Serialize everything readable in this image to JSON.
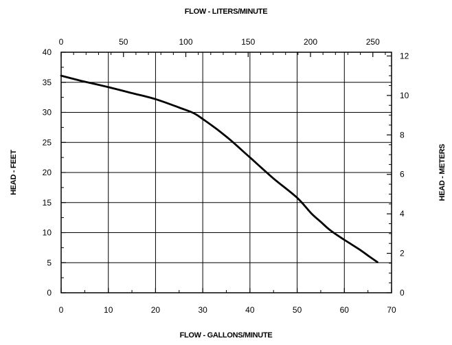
{
  "chart_data": {
    "type": "line",
    "title": "",
    "xlabel": "FLOW - GALLONS/MINUTE",
    "ylabel": "HEAD - FEET",
    "x2label": "FLOW - LITERS/MINUTE",
    "y2label": "HEAD - METERS",
    "xlim": [
      0,
      70
    ],
    "ylim": [
      0,
      40
    ],
    "x2lim": [
      0,
      265
    ],
    "y2lim": [
      0,
      12.19
    ],
    "xticks": [
      0,
      10,
      20,
      30,
      40,
      50,
      60,
      70
    ],
    "yticks": [
      0,
      5,
      10,
      15,
      20,
      25,
      30,
      35,
      40
    ],
    "x2ticks": [
      0,
      50,
      100,
      150,
      200,
      250
    ],
    "y2ticks": [
      0,
      2,
      4,
      6,
      8,
      10,
      12
    ],
    "grid": true,
    "series": [
      {
        "x": [
          0,
          5,
          10,
          15,
          20,
          25,
          28,
          30,
          33,
          36,
          40,
          45,
          50,
          53,
          55,
          57,
          60,
          63,
          65,
          67
        ],
        "values": [
          36.1,
          35.1,
          34.2,
          33.2,
          32.2,
          30.8,
          29.9,
          28.9,
          27.2,
          25.3,
          22.5,
          19.0,
          15.8,
          13.2,
          11.8,
          10.4,
          8.8,
          7.3,
          6.2,
          5.1
        ]
      }
    ]
  }
}
